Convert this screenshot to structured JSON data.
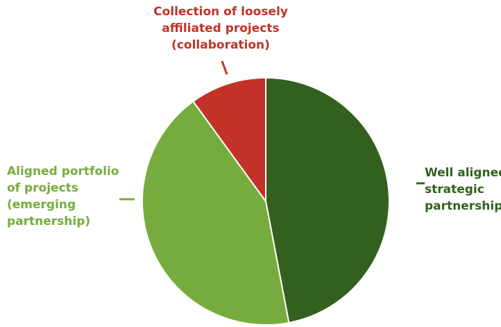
{
  "chart_data": {
    "type": "pie",
    "title": "",
    "start_angle_deg": 0,
    "direction": "clockwise",
    "slices": [
      {
        "label_lines": [
          "Well aligned",
          "strategic",
          "partnerships"
        ],
        "value": 47,
        "color": "#33601f"
      },
      {
        "label_lines": [
          "Aligned portfolio",
          "of projects",
          "(emerging",
          "partnership)"
        ],
        "value": 43,
        "color": "#76ac3d"
      },
      {
        "label_lines": [
          "Collection of loosely",
          "affiliated projects",
          "(collaboration)"
        ],
        "value": 10,
        "color": "#c23226"
      }
    ],
    "legend": "none (direct labels)"
  }
}
